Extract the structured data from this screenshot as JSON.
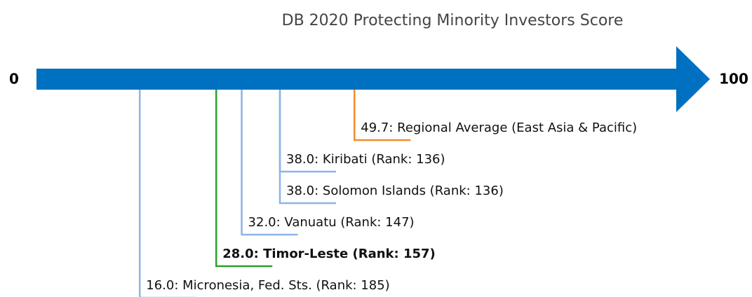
{
  "chart_data": {
    "type": "score-line",
    "title": "DB 2020 Protecting Minority Investors Score",
    "xlim": [
      0,
      100
    ],
    "xticks": [
      0,
      100
    ],
    "axis_color": "#0070c0",
    "values": [
      49.7,
      38.0,
      38.0,
      32.0,
      28.0,
      16.0
    ],
    "labels": [
      "49.7: Regional Average (East Asia & Pacific)",
      "38.0: Kiribati (Rank: 136)",
      "38.0: Solomon Islands (Rank: 136)",
      "32.0: Vanuatu (Rank: 147)",
      "28.0: Timor-Leste (Rank: 157)",
      "16.0: Micronesia, Fed. Sts. (Rank: 185)"
    ],
    "colors": [
      "#f28e2b",
      "#8cb4e8",
      "#8cb4e8",
      "#8cb4e8",
      "#2ca02c",
      "#8cb4e8"
    ],
    "bold": [
      false,
      false,
      false,
      false,
      true,
      false
    ]
  }
}
